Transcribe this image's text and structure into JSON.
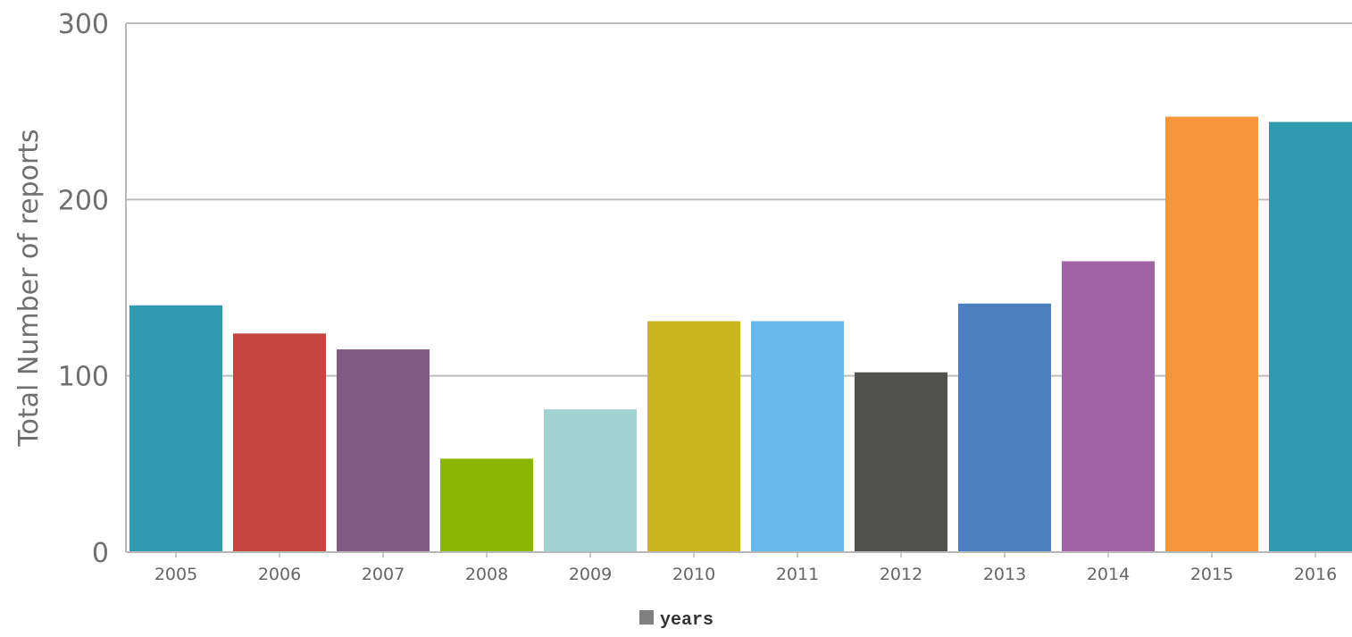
{
  "chart_data": {
    "type": "bar",
    "categories": [
      "2005",
      "2006",
      "2007",
      "2008",
      "2009",
      "2010",
      "2011",
      "2012",
      "2013",
      "2014",
      "2015",
      "2016"
    ],
    "series": [
      {
        "name": "years",
        "values": [
          140,
          124,
          115,
          53,
          81,
          131,
          131,
          102,
          141,
          165,
          247,
          244
        ],
        "colors": [
          "#2f9bb0",
          "#c5463f",
          "#805c84",
          "#89b601",
          "#a3d3d0",
          "#cbb620",
          "#68b9ea",
          "#51514d",
          "#4d80c1",
          "#a063a3",
          "#f6963b",
          "#2f9bb0"
        ]
      }
    ],
    "ylabel": "Total Number of reports",
    "xlabel": "",
    "ylim": [
      0,
      300
    ],
    "yticks": [
      0,
      100,
      200,
      300
    ],
    "grid": true,
    "legend_placement": "bottom-center",
    "legend_color": "#808080",
    "gridline_color": "#bdbdbd",
    "axis_color": "#b8b8b8"
  }
}
